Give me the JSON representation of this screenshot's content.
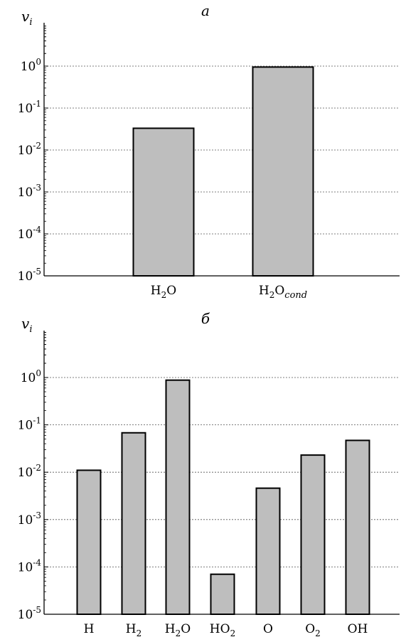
{
  "chart_data": [
    {
      "type": "bar",
      "title": "а",
      "ylabel": "v",
      "ylabel_sub": "i",
      "yscale": "log",
      "ylim": [
        1e-05,
        10
      ],
      "grid": true,
      "yticks": [
        {
          "base": "10",
          "exp": "0",
          "value": 1
        },
        {
          "base": "10",
          "exp": "-1",
          "value": 0.1
        },
        {
          "base": "10",
          "exp": "-2",
          "value": 0.01
        },
        {
          "base": "10",
          "exp": "-3",
          "value": 0.001
        },
        {
          "base": "10",
          "exp": "-4",
          "value": 0.0001
        },
        {
          "base": "10",
          "exp": "-5",
          "value": 1e-05
        }
      ],
      "categories": [
        {
          "main": "H",
          "sub": "2",
          "rest": "O",
          "tail": ""
        },
        {
          "main": "H",
          "sub": "2",
          "rest": "O",
          "tail": "cond"
        }
      ],
      "values": [
        0.033,
        0.95
      ]
    },
    {
      "type": "bar",
      "title": "б",
      "ylabel": "v",
      "ylabel_sub": "i",
      "yscale": "log",
      "ylim": [
        1e-05,
        10
      ],
      "grid": true,
      "yticks": [
        {
          "base": "10",
          "exp": "0",
          "value": 1
        },
        {
          "base": "10",
          "exp": "-1",
          "value": 0.1
        },
        {
          "base": "10",
          "exp": "-2",
          "value": 0.01
        },
        {
          "base": "10",
          "exp": "-3",
          "value": 0.001
        },
        {
          "base": "10",
          "exp": "-4",
          "value": 0.0001
        },
        {
          "base": "10",
          "exp": "-5",
          "value": 1e-05
        }
      ],
      "categories": [
        {
          "main": "H",
          "sub": "",
          "rest": "",
          "tail": ""
        },
        {
          "main": "H",
          "sub": "2",
          "rest": "",
          "tail": ""
        },
        {
          "main": "H",
          "sub": "2",
          "rest": "O",
          "tail": ""
        },
        {
          "main": "HO",
          "sub": "2",
          "rest": "",
          "tail": ""
        },
        {
          "main": "O",
          "sub": "",
          "rest": "",
          "tail": ""
        },
        {
          "main": "O",
          "sub": "2",
          "rest": "",
          "tail": ""
        },
        {
          "main": "OH",
          "sub": "",
          "rest": "",
          "tail": ""
        }
      ],
      "values": [
        0.011,
        0.068,
        0.88,
        7e-05,
        0.0046,
        0.023,
        0.047
      ]
    }
  ],
  "colors": {
    "bar_fill": "#bebebe",
    "bar_stroke": "#000000",
    "grid": "#555555"
  }
}
